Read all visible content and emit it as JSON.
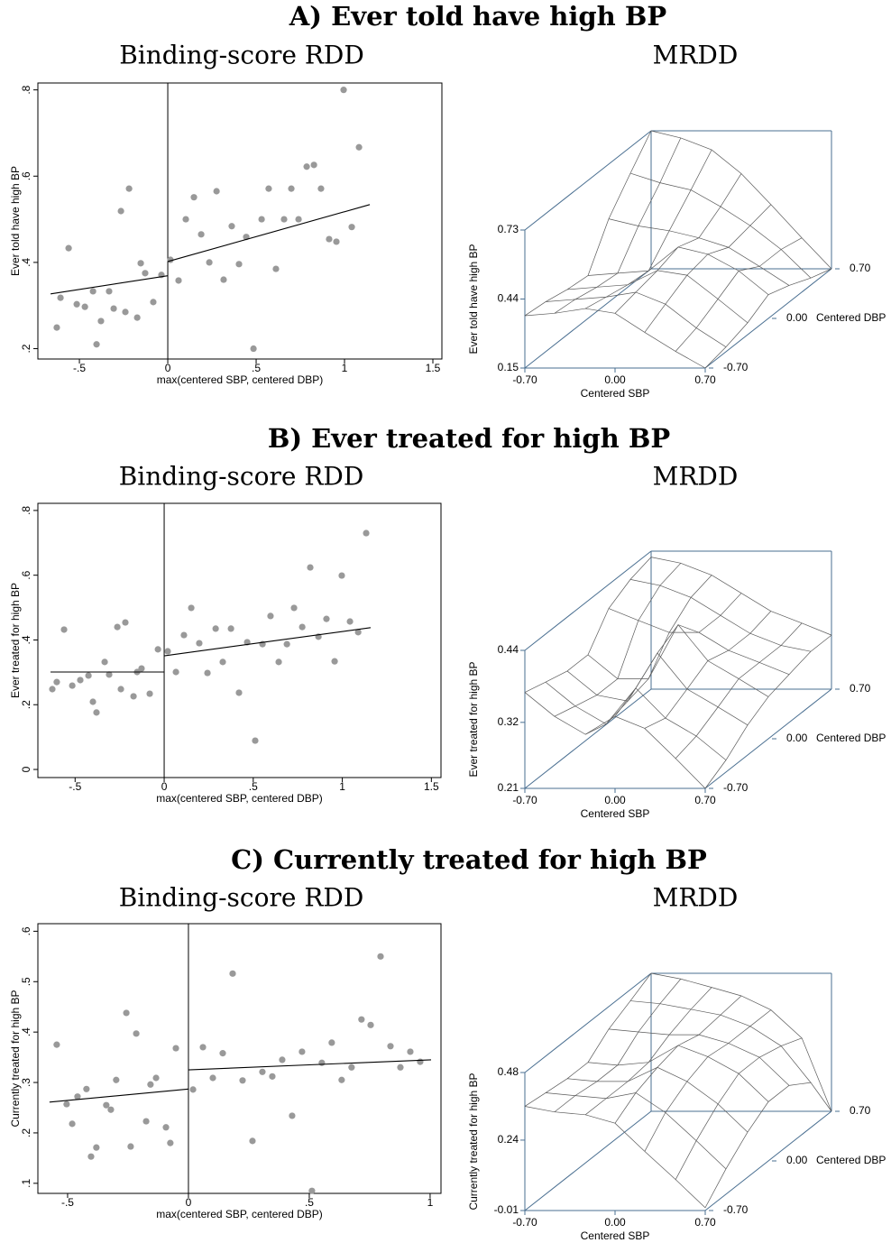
{
  "panel_titles": [
    "A) Ever told have high BP",
    "B) Ever treated for high BP",
    "C) Currently treated for high BP"
  ],
  "chart_data": [
    {
      "type": "scatter",
      "title": "Binding-score RDD",
      "xlabel": "max(centered SBP, centered DBP)",
      "ylabel": "Ever told have high BP",
      "color": "#999999",
      "x": [
        -0.628,
        -0.607,
        -0.561,
        -0.515,
        -0.469,
        -0.423,
        -0.403,
        -0.378,
        -0.332,
        -0.306,
        -0.265,
        -0.24,
        -0.219,
        -0.173,
        -0.153,
        -0.128,
        -0.082,
        -0.036,
        0.015,
        0.061,
        0.102,
        0.148,
        0.189,
        0.235,
        0.276,
        0.316,
        0.362,
        0.403,
        0.444,
        0.485,
        0.531,
        0.571,
        0.612,
        0.658,
        0.699,
        0.74,
        0.786,
        0.827,
        0.867,
        0.913,
        0.954,
        0.995,
        1.041,
        1.082
      ],
      "values": [
        0.249,
        0.318,
        0.433,
        0.303,
        0.297,
        0.333,
        0.21,
        0.264,
        0.333,
        0.293,
        0.519,
        0.285,
        0.571,
        0.272,
        0.398,
        0.375,
        0.308,
        0.371,
        0.406,
        0.358,
        0.5,
        0.551,
        0.465,
        0.4,
        0.565,
        0.36,
        0.484,
        0.396,
        0.459,
        0.2,
        0.5,
        0.571,
        0.385,
        0.5,
        0.571,
        0.5,
        0.622,
        0.626,
        0.571,
        0.454,
        0.448,
        0.8,
        0.482,
        0.667
      ],
      "xlim": [
        -0.735,
        1.551
      ],
      "ylim": [
        0.176,
        0.816
      ],
      "xticks": [
        {
          "value": -0.5,
          "label": "-.5"
        },
        0,
        {
          "value": 0.5,
          "label": ".5"
        },
        1,
        1.5
      ],
      "yticks": [
        {
          "value": 0.2,
          "label": ".2"
        },
        {
          "value": 0.4,
          "label": ".4"
        },
        {
          "value": 0.6,
          "label": ".6"
        },
        {
          "value": 0.8,
          "label": ".8"
        }
      ],
      "cutoff": 0,
      "fit_lines": [
        {
          "x": [
            -0.663,
            0
          ],
          "values": [
            0.327,
            0.369
          ]
        },
        {
          "x": [
            0,
            1.143
          ],
          "values": [
            0.402,
            0.534
          ]
        }
      ]
    },
    {
      "type": "surface",
      "title": "MRDD",
      "xlabel": "Centered SBP",
      "ylabel": "Centered DBP",
      "zlabel": "Ever told have high BP",
      "color": "#5a5a5a",
      "frame_color": "#4a6f91",
      "xlim": [
        -0.7,
        0.7
      ],
      "ylim": [
        -0.7,
        0.7
      ],
      "zlim": [
        0.15,
        0.73
      ],
      "xticks": [
        {
          "value": -0.7,
          "label": "-0.70"
        },
        {
          "value": 0,
          "label": "0.00"
        },
        {
          "value": 0.7,
          "label": "0.70"
        }
      ],
      "yticks": [
        {
          "value": -0.7,
          "label": "-0.70"
        },
        {
          "value": 0,
          "label": "0.00"
        },
        {
          "value": 0.7,
          "label": "0.70"
        }
      ],
      "zticks": [
        {
          "value": 0.15,
          "label": "0.15"
        },
        {
          "value": 0.44,
          "label": "0.44"
        },
        {
          "value": 0.73,
          "label": "0.73"
        }
      ],
      "grid_x": [
        -0.7,
        -0.47,
        -0.23,
        0,
        0.23,
        0.47,
        0.7
      ],
      "grid_y": [
        -0.7,
        -0.47,
        -0.23,
        0,
        0.23,
        0.47,
        0.7
      ],
      "z": [
        [
          0.37,
          0.38,
          0.4,
          0.38,
          0.3,
          0.22,
          0.15
        ],
        [
          0.36,
          0.37,
          0.38,
          0.4,
          0.35,
          0.25,
          0.17
        ],
        [
          0.34,
          0.35,
          0.36,
          0.42,
          0.4,
          0.3,
          0.2
        ],
        [
          0.33,
          0.34,
          0.35,
          0.45,
          0.42,
          0.35,
          0.25
        ],
        [
          0.5,
          0.47,
          0.45,
          0.42,
          0.38,
          0.3,
          0.22
        ],
        [
          0.62,
          0.58,
          0.55,
          0.48,
          0.4,
          0.3,
          0.18
        ],
        [
          0.73,
          0.7,
          0.65,
          0.55,
          0.42,
          0.28,
          0.15
        ]
      ]
    },
    {
      "type": "scatter",
      "title": "Binding-score RDD",
      "xlabel": "max(centered SBP, centered DBP)",
      "ylabel": "Ever treated for high BP",
      "color": "#999999",
      "x": [
        -0.628,
        -0.603,
        -0.562,
        -0.516,
        -0.471,
        -0.425,
        -0.4,
        -0.38,
        -0.334,
        -0.309,
        -0.263,
        -0.243,
        -0.218,
        -0.172,
        -0.152,
        -0.127,
        -0.081,
        -0.035,
        0.02,
        0.066,
        0.111,
        0.152,
        0.197,
        0.243,
        0.289,
        0.329,
        0.375,
        0.42,
        0.466,
        0.511,
        0.552,
        0.597,
        0.643,
        0.689,
        0.729,
        0.775,
        0.82,
        0.866,
        0.911,
        0.957,
        0.997,
        1.043,
        1.089,
        1.134
      ],
      "values": [
        0.248,
        0.27,
        0.432,
        0.259,
        0.276,
        0.29,
        0.209,
        0.176,
        0.332,
        0.293,
        0.44,
        0.248,
        0.454,
        0.226,
        0.301,
        0.312,
        0.234,
        0.371,
        0.365,
        0.301,
        0.415,
        0.499,
        0.39,
        0.298,
        0.435,
        0.332,
        0.435,
        0.237,
        0.393,
        0.089,
        0.387,
        0.474,
        0.332,
        0.387,
        0.499,
        0.44,
        0.624,
        0.41,
        0.465,
        0.334,
        0.599,
        0.457,
        0.424,
        0.73
      ],
      "xlim": [
        -0.709,
        1.554
      ],
      "ylim": [
        -0.025,
        0.822
      ],
      "xticks": [
        {
          "value": -0.5,
          "label": "-.5"
        },
        0,
        {
          "value": 0.5,
          "label": ".5"
        },
        1,
        1.5
      ],
      "yticks": [
        0,
        {
          "value": 0.2,
          "label": ".2"
        },
        {
          "value": 0.4,
          "label": ".4"
        },
        {
          "value": 0.6,
          "label": ".6"
        },
        {
          "value": 0.8,
          "label": ".8"
        }
      ],
      "cutoff": 0,
      "fit_lines": [
        {
          "x": [
            -0.638,
            0
          ],
          "values": [
            0.301,
            0.301
          ]
        },
        {
          "x": [
            0,
            1.159
          ],
          "values": [
            0.351,
            0.438
          ]
        }
      ]
    },
    {
      "type": "surface",
      "title": "MRDD",
      "xlabel": "Centered SBP",
      "ylabel": "Centered DBP",
      "zlabel": "Ever treated for high BP",
      "color": "#5a5a5a",
      "frame_color": "#4a6f91",
      "xlim": [
        -0.7,
        0.7
      ],
      "ylim": [
        -0.7,
        0.7
      ],
      "zlim": [
        0.21,
        0.44
      ],
      "xticks": [
        {
          "value": -0.7,
          "label": "-0.70"
        },
        {
          "value": 0,
          "label": "0.00"
        },
        {
          "value": 0.7,
          "label": "0.70"
        }
      ],
      "yticks": [
        {
          "value": -0.7,
          "label": "-0.70"
        },
        {
          "value": 0,
          "label": "0.00"
        },
        {
          "value": 0.7,
          "label": "0.70"
        }
      ],
      "zticks": [
        {
          "value": 0.21,
          "label": "0.21"
        },
        {
          "value": 0.32,
          "label": "0.32"
        },
        {
          "value": 0.44,
          "label": "0.44"
        }
      ],
      "grid_x": [
        -0.7,
        -0.47,
        -0.23,
        0,
        0.23,
        0.47,
        0.7
      ],
      "grid_y": [
        -0.7,
        -0.47,
        -0.23,
        0,
        0.23,
        0.47,
        0.7
      ],
      "z": [
        [
          0.37,
          0.33,
          0.3,
          0.33,
          0.31,
          0.26,
          0.21
        ],
        [
          0.36,
          0.32,
          0.29,
          0.35,
          0.3,
          0.27,
          0.23
        ],
        [
          0.35,
          0.31,
          0.3,
          0.38,
          0.32,
          0.29,
          0.26
        ],
        [
          0.35,
          0.31,
          0.31,
          0.4,
          0.34,
          0.31,
          0.28
        ],
        [
          0.4,
          0.38,
          0.36,
          0.36,
          0.33,
          0.31,
          0.29
        ],
        [
          0.42,
          0.41,
          0.39,
          0.36,
          0.33,
          0.31,
          0.3
        ],
        [
          0.43,
          0.42,
          0.4,
          0.37,
          0.34,
          0.32,
          0.3
        ]
      ]
    },
    {
      "type": "scatter",
      "title": "Binding-score RDD",
      "xlabel": "max(centered SBP, centered DBP)",
      "ylabel": "Currently treated for high BP",
      "color": "#999999",
      "x": [
        -0.545,
        -0.504,
        -0.481,
        -0.459,
        -0.422,
        -0.403,
        -0.381,
        -0.34,
        -0.321,
        -0.299,
        -0.257,
        -0.239,
        -0.216,
        -0.175,
        -0.157,
        -0.134,
        -0.093,
        -0.075,
        -0.052,
        0.019,
        0.06,
        0.101,
        0.142,
        0.183,
        0.224,
        0.265,
        0.306,
        0.347,
        0.388,
        0.429,
        0.47,
        0.511,
        0.552,
        0.593,
        0.634,
        0.675,
        0.716,
        0.754,
        0.795,
        0.836,
        0.877,
        0.918,
        0.959
      ],
      "values": [
        0.375,
        0.257,
        0.218,
        0.272,
        0.287,
        0.153,
        0.171,
        0.255,
        0.246,
        0.305,
        0.438,
        0.173,
        0.397,
        0.223,
        0.296,
        0.309,
        0.211,
        0.18,
        0.368,
        0.286,
        0.37,
        0.309,
        0.358,
        0.516,
        0.304,
        0.184,
        0.321,
        0.312,
        0.345,
        0.234,
        0.361,
        0.085,
        0.339,
        0.379,
        0.305,
        0.33,
        0.425,
        0.414,
        0.55,
        0.372,
        0.33,
        0.361,
        0.341
      ],
      "xlim": [
        -0.623,
        1.045
      ],
      "ylim": [
        0.08,
        0.615
      ],
      "xticks": [
        {
          "value": -0.5,
          "label": "-.5"
        },
        0,
        {
          "value": 0.5,
          "label": ".5"
        },
        1
      ],
      "yticks": [
        {
          "value": 0.1,
          "label": ".1"
        },
        {
          "value": 0.2,
          "label": ".2"
        },
        {
          "value": 0.3,
          "label": ".3"
        },
        {
          "value": 0.4,
          "label": ".4"
        },
        {
          "value": 0.5,
          "label": ".5"
        },
        {
          "value": 0.6,
          "label": ".6"
        }
      ],
      "cutoff": 0,
      "fit_lines": [
        {
          "x": [
            -0.575,
            0
          ],
          "values": [
            0.261,
            0.287
          ]
        },
        {
          "x": [
            0,
            1.004
          ],
          "values": [
            0.325,
            0.345
          ]
        }
      ]
    },
    {
      "type": "surface",
      "title": "MRDD",
      "xlabel": "Centered SBP",
      "ylabel": "Centered DBP",
      "zlabel": "Currently treated for high BP",
      "color": "#5a5a5a",
      "frame_color": "#4a6f91",
      "xlim": [
        -0.7,
        0.7
      ],
      "ylim": [
        -0.7,
        0.7
      ],
      "zlim": [
        -0.01,
        0.48
      ],
      "xticks": [
        {
          "value": -0.7,
          "label": "-0.70"
        },
        {
          "value": 0,
          "label": "0.00"
        },
        {
          "value": 0.7,
          "label": "0.70"
        }
      ],
      "yticks": [
        {
          "value": -0.7,
          "label": "-0.70"
        },
        {
          "value": 0,
          "label": "0.00"
        },
        {
          "value": 0.7,
          "label": "0.70"
        }
      ],
      "zticks": [
        {
          "value": -0.01,
          "label": "-0.01"
        },
        {
          "value": 0.24,
          "label": "0.24"
        },
        {
          "value": 0.48,
          "label": "0.48"
        }
      ],
      "grid_x": [
        -0.7,
        -0.47,
        -0.23,
        0,
        0.23,
        0.47,
        0.7
      ],
      "grid_y": [
        -0.7,
        -0.47,
        -0.23,
        0,
        0.23,
        0.47,
        0.7
      ],
      "z": [
        [
          0.36,
          0.34,
          0.33,
          0.3,
          0.2,
          0.1,
          0.0
        ],
        [
          0.35,
          0.34,
          0.33,
          0.35,
          0.28,
          0.18,
          0.08
        ],
        [
          0.34,
          0.33,
          0.33,
          0.38,
          0.33,
          0.25,
          0.15
        ],
        [
          0.34,
          0.33,
          0.34,
          0.4,
          0.36,
          0.3,
          0.2
        ],
        [
          0.4,
          0.39,
          0.38,
          0.38,
          0.35,
          0.3,
          0.2
        ],
        [
          0.44,
          0.43,
          0.41,
          0.39,
          0.35,
          0.28,
          0.15
        ],
        [
          0.48,
          0.46,
          0.43,
          0.4,
          0.35,
          0.25,
          -0.01
        ]
      ]
    }
  ]
}
